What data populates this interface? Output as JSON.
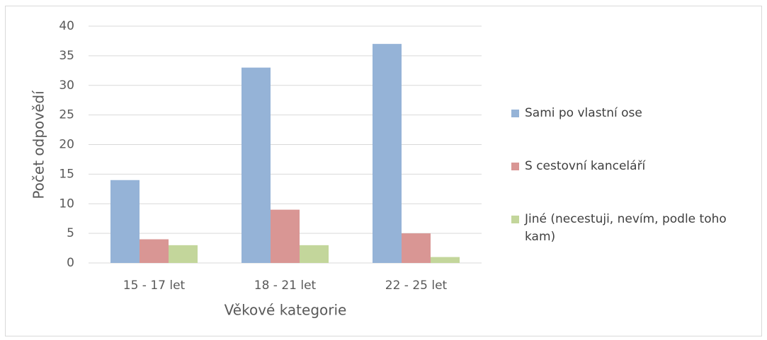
{
  "chart_data": {
    "type": "bar",
    "x_label": "Věkové kategorie",
    "y_label": "Počet odpovědí",
    "categories": [
      "15 - 17 let",
      "18 - 21 let",
      "22 - 25 let"
    ],
    "series": [
      {
        "name": "Sami po vlastní ose",
        "color": "#95b3d7",
        "values": [
          14,
          33,
          37
        ]
      },
      {
        "name": "S cestovní kanceláří",
        "color": "#d99694",
        "values": [
          4,
          9,
          5
        ]
      },
      {
        "name": "Jiné (necestuji, nevím, podle toho kam)",
        "color": "#c3d69b",
        "values": [
          3,
          3,
          1
        ]
      }
    ],
    "ylim": [
      0,
      40
    ],
    "yticks": [
      0,
      5,
      10,
      15,
      20,
      25,
      30,
      35,
      40
    ],
    "grid": true,
    "legend": "right"
  }
}
